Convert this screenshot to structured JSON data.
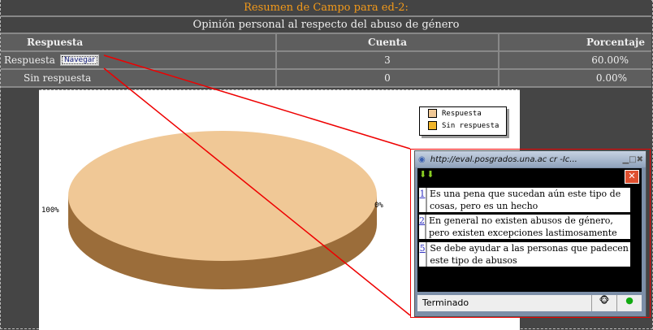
{
  "title": "Resumen de Campo para ed-2:",
  "subtitle": "Opinión personal al respecto del abuso de género",
  "table": {
    "headers": [
      "Respuesta",
      "Cuenta",
      "Porcentaje"
    ],
    "rows": [
      {
        "label": "Respuesta",
        "button": "Navegar",
        "count": "3",
        "percent": "60.00%"
      },
      {
        "label": "Sin respuesta",
        "count": "0",
        "percent": "0.00%"
      }
    ]
  },
  "chart_data": {
    "type": "pie",
    "categories": [
      "Respuesta",
      "Sin respuesta"
    ],
    "values": [
      100,
      0
    ],
    "labels": [
      "100%",
      "0%"
    ],
    "colors": [
      "#f0c896",
      "#f0b429"
    ],
    "legend": "top-right"
  },
  "popup": {
    "title": "http://eval.posgrados.una.ac cr -Ic...",
    "items": [
      {
        "num": "1",
        "text": "Es una pena que sucedan aún este tipo de cosas, pero es un hecho"
      },
      {
        "num": "2",
        "text": "En general no existen abusos de género, pero existen excepciones lastimosamente"
      },
      {
        "num": "5",
        "text": "Se debe ayudar a las personas que padecen este tipo de abusos"
      }
    ],
    "status": "Terminado"
  }
}
